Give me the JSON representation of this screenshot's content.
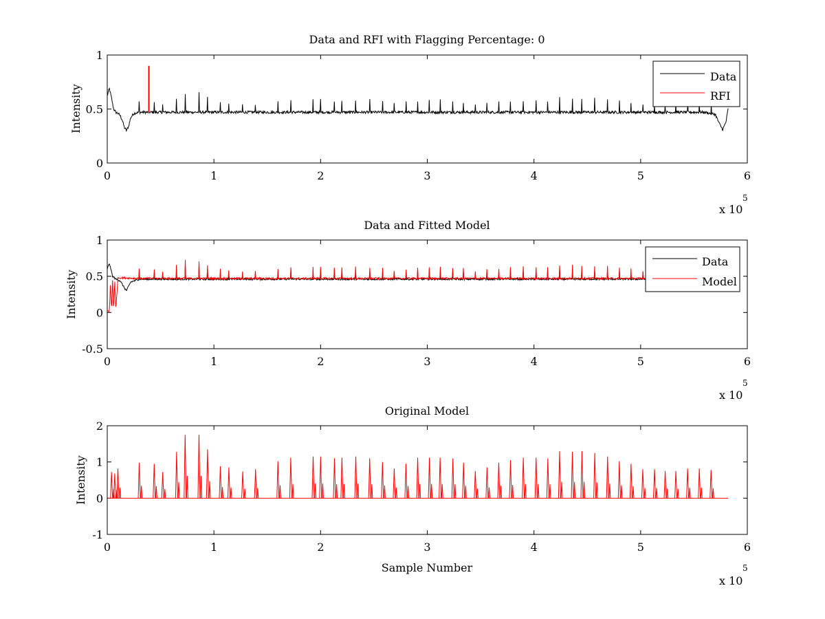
{
  "figure": {
    "background": "#ffffff",
    "data_color": "#000000",
    "model_color": "#ff0000"
  },
  "chart_data": [
    {
      "type": "line",
      "title": "Data and RFI with Flagging Percentage: 0",
      "xlabel": "",
      "ylabel": "Intensity",
      "xlim": [
        0,
        6
      ],
      "ylim": [
        0,
        1
      ],
      "xticks": [
        0,
        1,
        2,
        3,
        4,
        5,
        6
      ],
      "yticks": [
        0,
        0.5,
        1
      ],
      "xtick_labels": [
        "0",
        "1",
        "2",
        "3",
        "4",
        "5",
        "6"
      ],
      "ytick_labels": [
        "0",
        "0.5",
        "1"
      ],
      "x_multiplier": "x 10",
      "x_multiplier_exponent": "5",
      "legend": {
        "location": "top-right",
        "entries": [
          "Data",
          "RFI"
        ]
      },
      "series": [
        {
          "name": "Data",
          "color": "#000000",
          "x": [
            0.0,
            0.01,
            0.02,
            0.04,
            0.06,
            0.08,
            0.1,
            0.12,
            0.14,
            0.16,
            0.18,
            0.2,
            0.22,
            0.25,
            0.3,
            0.4,
            0.6,
            1.0,
            2.0,
            3.0,
            4.0,
            5.0,
            5.6,
            5.7,
            5.74,
            5.77,
            5.8,
            5.82
          ],
          "values": [
            0.62,
            0.66,
            0.69,
            0.6,
            0.5,
            0.47,
            0.46,
            0.44,
            0.4,
            0.33,
            0.3,
            0.34,
            0.42,
            0.46,
            0.47,
            0.47,
            0.47,
            0.47,
            0.47,
            0.47,
            0.47,
            0.47,
            0.47,
            0.45,
            0.36,
            0.31,
            0.38,
            0.5
          ]
        },
        {
          "name": "RFI",
          "color": "#ff0000",
          "x": [
            0.39
          ],
          "values": [
            0.9
          ]
        }
      ]
    },
    {
      "type": "line",
      "title": "Data and Fitted Model",
      "xlabel": "",
      "ylabel": "Intensity",
      "xlim": [
        0,
        6
      ],
      "ylim": [
        -0.5,
        1
      ],
      "xticks": [
        0,
        1,
        2,
        3,
        4,
        5,
        6
      ],
      "yticks": [
        -0.5,
        0,
        0.5,
        1
      ],
      "xtick_labels": [
        "0",
        "1",
        "2",
        "3",
        "4",
        "5",
        "6"
      ],
      "ytick_labels": [
        "-0.5",
        "0",
        "0.5",
        "1"
      ],
      "x_multiplier": "x 10",
      "x_multiplier_exponent": "5",
      "legend": {
        "location": "top-right",
        "entries": [
          "Data",
          "Model"
        ]
      },
      "series": [
        {
          "name": "Data",
          "color": "#000000",
          "x": [
            0.0,
            0.02,
            0.05,
            0.08,
            0.12,
            0.16,
            0.18,
            0.22,
            0.3,
            1.0,
            2.0,
            3.0,
            4.0,
            5.0,
            5.82
          ],
          "values": [
            0.6,
            0.68,
            0.5,
            0.46,
            0.44,
            0.34,
            0.3,
            0.42,
            0.46,
            0.46,
            0.46,
            0.46,
            0.46,
            0.46,
            0.46
          ]
        },
        {
          "name": "Model",
          "color": "#ff0000",
          "x": [
            0.0,
            0.02,
            0.03,
            0.04,
            0.05,
            0.06,
            0.07,
            0.08,
            0.1,
            0.3,
            1.0,
            2.0,
            3.0,
            4.0,
            5.0,
            5.82
          ],
          "values": [
            0.02,
            0.02,
            0.4,
            0.02,
            0.45,
            0.02,
            0.45,
            0.03,
            0.48,
            0.47,
            0.47,
            0.47,
            0.47,
            0.47,
            0.47,
            0.47
          ]
        }
      ]
    },
    {
      "type": "line",
      "title": "Original Model",
      "xlabel": "Sample Number",
      "ylabel": "Intensity",
      "xlim": [
        0,
        6
      ],
      "ylim": [
        -1,
        2
      ],
      "xticks": [
        0,
        1,
        2,
        3,
        4,
        5,
        6
      ],
      "yticks": [
        -1,
        0,
        1,
        2
      ],
      "xtick_labels": [
        "0",
        "1",
        "2",
        "3",
        "4",
        "5",
        "6"
      ],
      "ytick_labels": [
        "-1",
        "0",
        "1",
        "2"
      ],
      "x_multiplier": "x 10",
      "x_multiplier_exponent": "5",
      "series": [
        {
          "name": "",
          "color": "#ff0000",
          "baseline": 0,
          "x_end": 5.82,
          "peaks_x": [
            0.04,
            0.07,
            0.1,
            0.3,
            0.44,
            0.52,
            0.65,
            0.73,
            0.86,
            0.94,
            1.06,
            1.14,
            1.27,
            1.39,
            1.6,
            1.72,
            1.93,
            2.0,
            2.13,
            2.2,
            2.33,
            2.46,
            2.58,
            2.69,
            2.8,
            2.91,
            3.02,
            3.12,
            3.24,
            3.34,
            3.45,
            3.56,
            3.67,
            3.78,
            3.9,
            4.02,
            4.13,
            4.24,
            4.36,
            4.45,
            4.57,
            4.69,
            4.8,
            4.91,
            5.02,
            5.13,
            5.23,
            5.33,
            5.44,
            5.55,
            5.66
          ],
          "peaks_y": [
            0.72,
            0.68,
            0.82,
            0.98,
            0.95,
            0.72,
            1.28,
            1.75,
            1.75,
            1.35,
            0.88,
            0.85,
            0.74,
            0.8,
            1.02,
            1.12,
            1.15,
            1.15,
            1.1,
            1.12,
            1.15,
            1.1,
            1.0,
            0.82,
            0.95,
            1.12,
            1.12,
            1.12,
            1.1,
            0.98,
            0.75,
            0.85,
            0.98,
            1.05,
            1.12,
            1.12,
            1.1,
            1.3,
            1.28,
            1.3,
            1.25,
            1.15,
            1.02,
            0.95,
            0.8,
            0.8,
            0.75,
            0.75,
            0.82,
            0.82,
            0.78
          ]
        }
      ]
    }
  ]
}
